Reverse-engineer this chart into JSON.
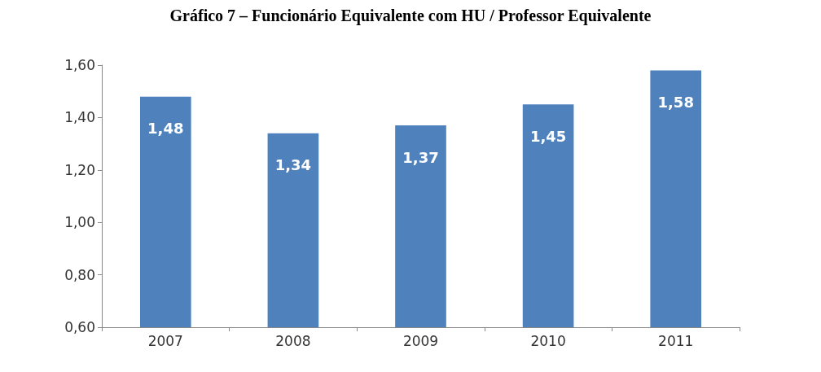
{
  "chart_data": {
    "type": "bar",
    "title": "Gráfico 7 – Funcionário Equivalente com HU / Professor Equivalente",
    "categories": [
      "2007",
      "2008",
      "2009",
      "2010",
      "2011"
    ],
    "values": [
      1.48,
      1.34,
      1.37,
      1.45,
      1.58
    ],
    "value_labels": [
      "1,48",
      "1,34",
      "1,37",
      "1,45",
      "1,58"
    ],
    "color": "#4f81bd",
    "ylim": [
      0.6,
      1.6
    ],
    "yticks": [
      {
        "value": 0.6,
        "label": "0,60"
      },
      {
        "value": 0.8,
        "label": "0,80"
      },
      {
        "value": 1.0,
        "label": "1,00"
      },
      {
        "value": 1.2,
        "label": "1,20"
      },
      {
        "value": 1.4,
        "label": "1,40"
      },
      {
        "value": 1.6,
        "label": "1,60"
      }
    ],
    "grid": false
  }
}
